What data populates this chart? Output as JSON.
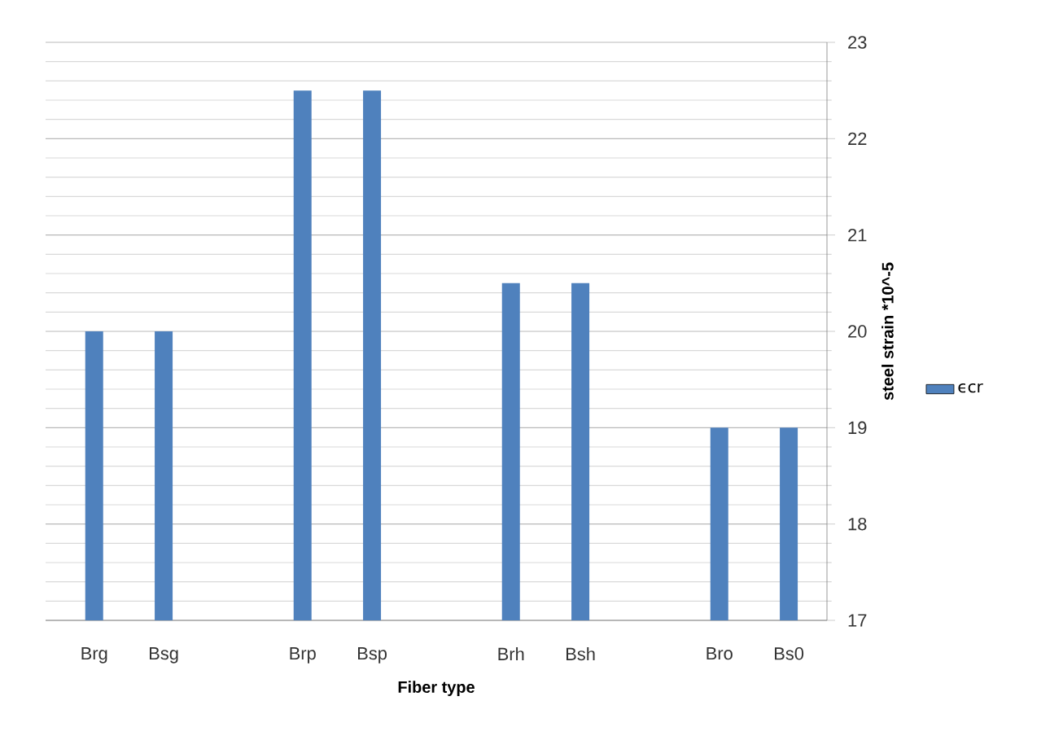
{
  "chart_data": {
    "type": "bar",
    "xlabel": "Fiber type",
    "ylabel": "steel strain *10^-5",
    "categories": [
      "Brg",
      "Bsg",
      null,
      "Brp",
      "Bsp",
      null,
      "Brh",
      "Bsh",
      null,
      "Bro",
      "Bs0"
    ],
    "series": [
      {
        "name": "ϵcr",
        "color": "#4f81bd",
        "values": [
          20,
          20,
          null,
          22.5,
          22.5,
          null,
          20.5,
          20.5,
          null,
          19,
          19
        ]
      }
    ],
    "ylim": [
      17,
      23
    ],
    "yticks": [
      17,
      {
        "value": 17.2,
        "label": null
      },
      {
        "value": 17.4,
        "label": null
      },
      {
        "value": 17.6,
        "label": null
      },
      {
        "value": 17.8,
        "label": null
      },
      18,
      {
        "value": 18.2,
        "label": null
      },
      {
        "value": 18.4,
        "label": null
      },
      {
        "value": 18.6,
        "label": null
      },
      {
        "value": 18.8,
        "label": null
      },
      19,
      {
        "value": 19.2,
        "label": null
      },
      {
        "value": 19.4,
        "label": null
      },
      {
        "value": 19.6,
        "label": null
      },
      {
        "value": 19.8,
        "label": null
      },
      20,
      {
        "value": 20.2,
        "label": null
      },
      {
        "value": 20.4,
        "label": null
      },
      {
        "value": 20.6,
        "label": null
      },
      {
        "value": 20.8,
        "label": null
      },
      21,
      {
        "value": 21.2,
        "label": null
      },
      {
        "value": 21.4,
        "label": null
      },
      {
        "value": 21.6,
        "label": null
      },
      {
        "value": 21.8,
        "label": null
      },
      22,
      {
        "value": 22.2,
        "label": null
      },
      {
        "value": 22.4,
        "label": null
      },
      {
        "value": 22.6,
        "label": null
      },
      {
        "value": 22.8,
        "label": null
      },
      23
    ],
    "grid": "y",
    "legend": "right"
  }
}
